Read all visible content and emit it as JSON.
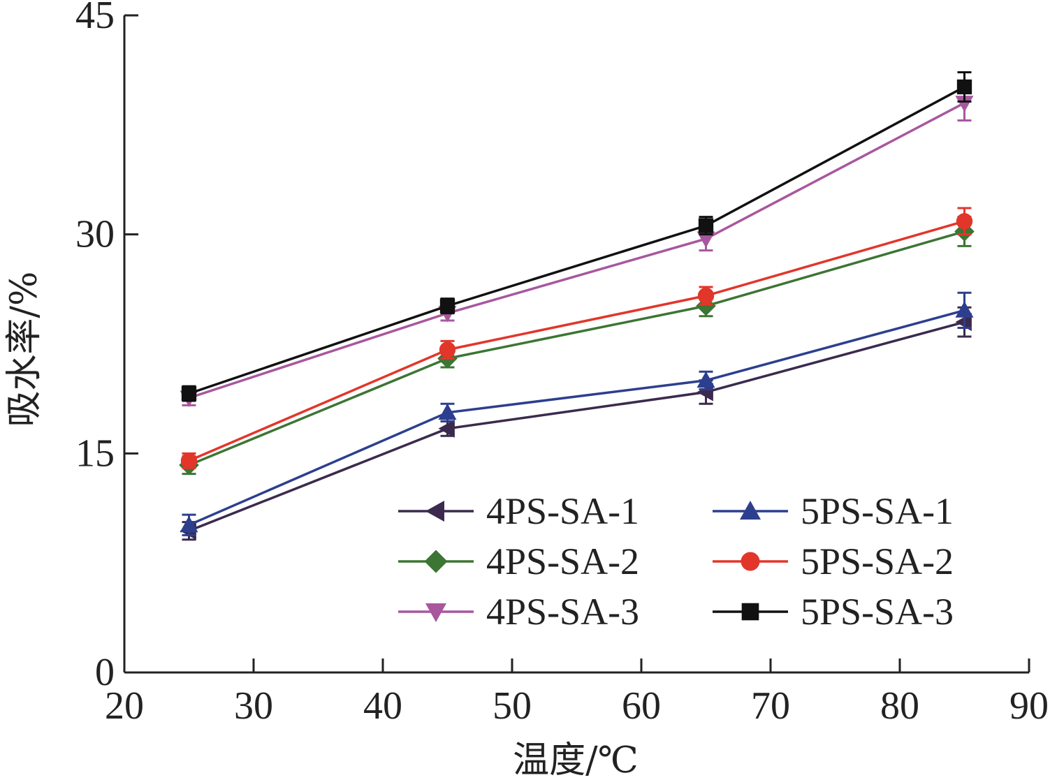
{
  "chart_data": {
    "type": "line",
    "xlabel": "温度/℃",
    "ylabel": "吸水率/%",
    "xlim": [
      20,
      90
    ],
    "ylim": [
      0,
      45
    ],
    "xticks": [
      20,
      30,
      40,
      50,
      60,
      70,
      80,
      90
    ],
    "yticks": [
      0,
      15,
      30,
      45
    ],
    "x": [
      25,
      45,
      65,
      85
    ],
    "legend_position": "lower-right",
    "series": [
      {
        "name": "4PS-SA-1",
        "color": "#3b2a4e",
        "marker": "triangle-left",
        "values": [
          9.7,
          16.7,
          19.2,
          24.0
        ],
        "errors": [
          0.6,
          0.5,
          0.8,
          1.0
        ]
      },
      {
        "name": "4PS-SA-2",
        "color": "#3d7534",
        "marker": "diamond",
        "values": [
          14.2,
          21.5,
          25.1,
          30.2
        ],
        "errors": [
          0.6,
          0.6,
          0.7,
          1.0
        ]
      },
      {
        "name": "4PS-SA-3",
        "color": "#a8579e",
        "marker": "triangle-down",
        "values": [
          18.8,
          24.6,
          29.7,
          39.0
        ],
        "errors": [
          0.5,
          0.5,
          0.8,
          1.2
        ]
      },
      {
        "name": "5PS-SA-1",
        "color": "#2c3f8f",
        "marker": "triangle-up",
        "values": [
          10.1,
          17.8,
          20.0,
          24.8
        ],
        "errors": [
          0.7,
          0.6,
          0.6,
          1.2
        ]
      },
      {
        "name": "5PS-SA-2",
        "color": "#e2362b",
        "marker": "circle",
        "values": [
          14.5,
          22.1,
          25.8,
          30.9
        ],
        "errors": [
          0.5,
          0.6,
          0.6,
          0.9
        ]
      },
      {
        "name": "5PS-SA-3",
        "color": "#111111",
        "marker": "square",
        "values": [
          19.1,
          25.1,
          30.6,
          40.1
        ],
        "errors": [
          0.5,
          0.5,
          0.6,
          1.0
        ]
      }
    ]
  }
}
